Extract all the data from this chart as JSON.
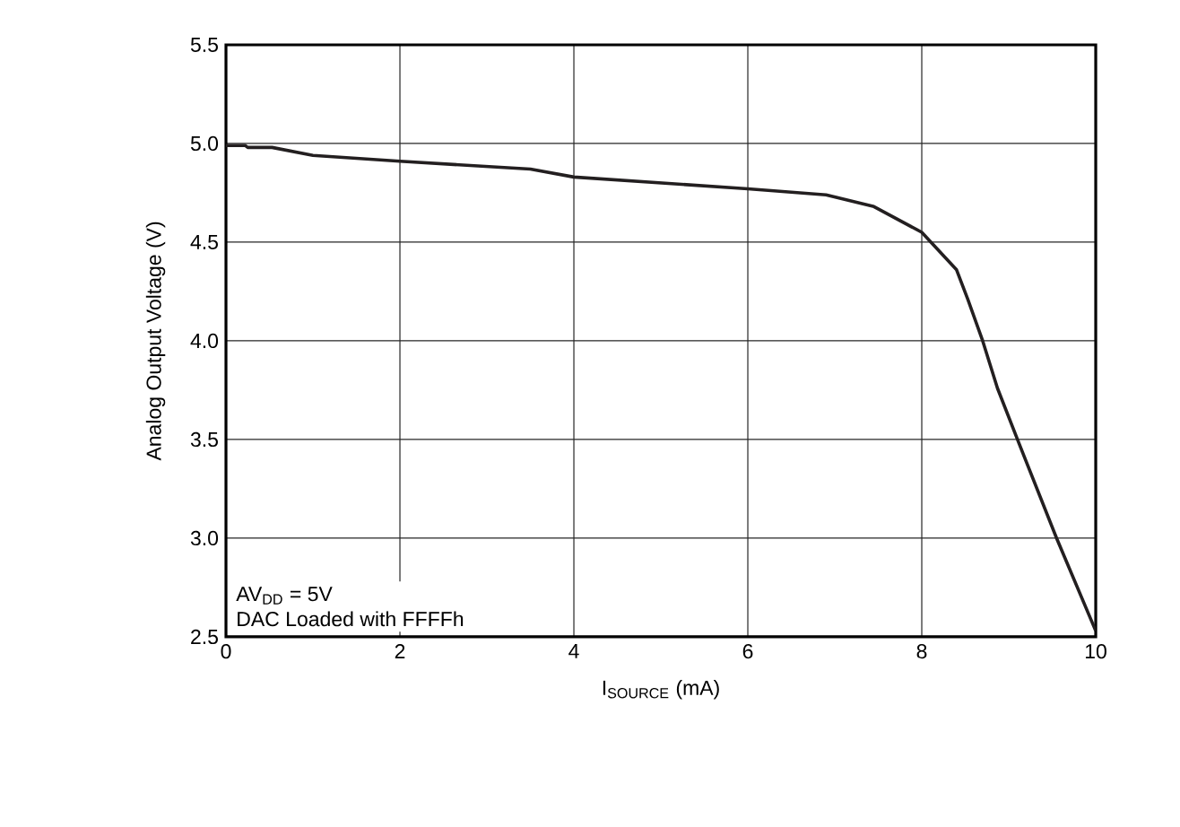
{
  "chart_data": {
    "type": "line",
    "xlabel": "I$_{SOURCE}$ (mA)",
    "ylabel": "Analog Output Voltage (V)",
    "annotations": [
      "AV$_{DD}$ = 5V",
      "DAC Loaded with FFFFh"
    ],
    "x": [
      0,
      0.22,
      0.25,
      0.53,
      1.0,
      2.0,
      3.5,
      4.0,
      6.0,
      6.9,
      7.45,
      8.0,
      8.4,
      8.53,
      8.7,
      8.87,
      9.1,
      9.55,
      10.0
    ],
    "series": [
      {
        "color": "#231f20",
        "values": [
          4.99,
          4.99,
          4.98,
          4.98,
          4.94,
          4.91,
          4.87,
          4.83,
          4.77,
          4.74,
          4.68,
          4.55,
          4.36,
          4.21,
          4.0,
          3.76,
          3.5,
          3.0,
          2.53
        ]
      }
    ],
    "xlim": [
      0,
      10
    ],
    "ylim": [
      2.5,
      5.5
    ],
    "xticks": [
      0,
      2,
      4,
      6,
      8,
      10
    ],
    "yticks": [
      2.5,
      {
        "value": 3,
        "label": "3.0"
      },
      3.5,
      {
        "value": 4,
        "label": "4.0"
      },
      4.5,
      {
        "value": 5,
        "label": "5.0"
      },
      5.5
    ],
    "grid": true,
    "marker": "none",
    "line_style": "solid"
  }
}
